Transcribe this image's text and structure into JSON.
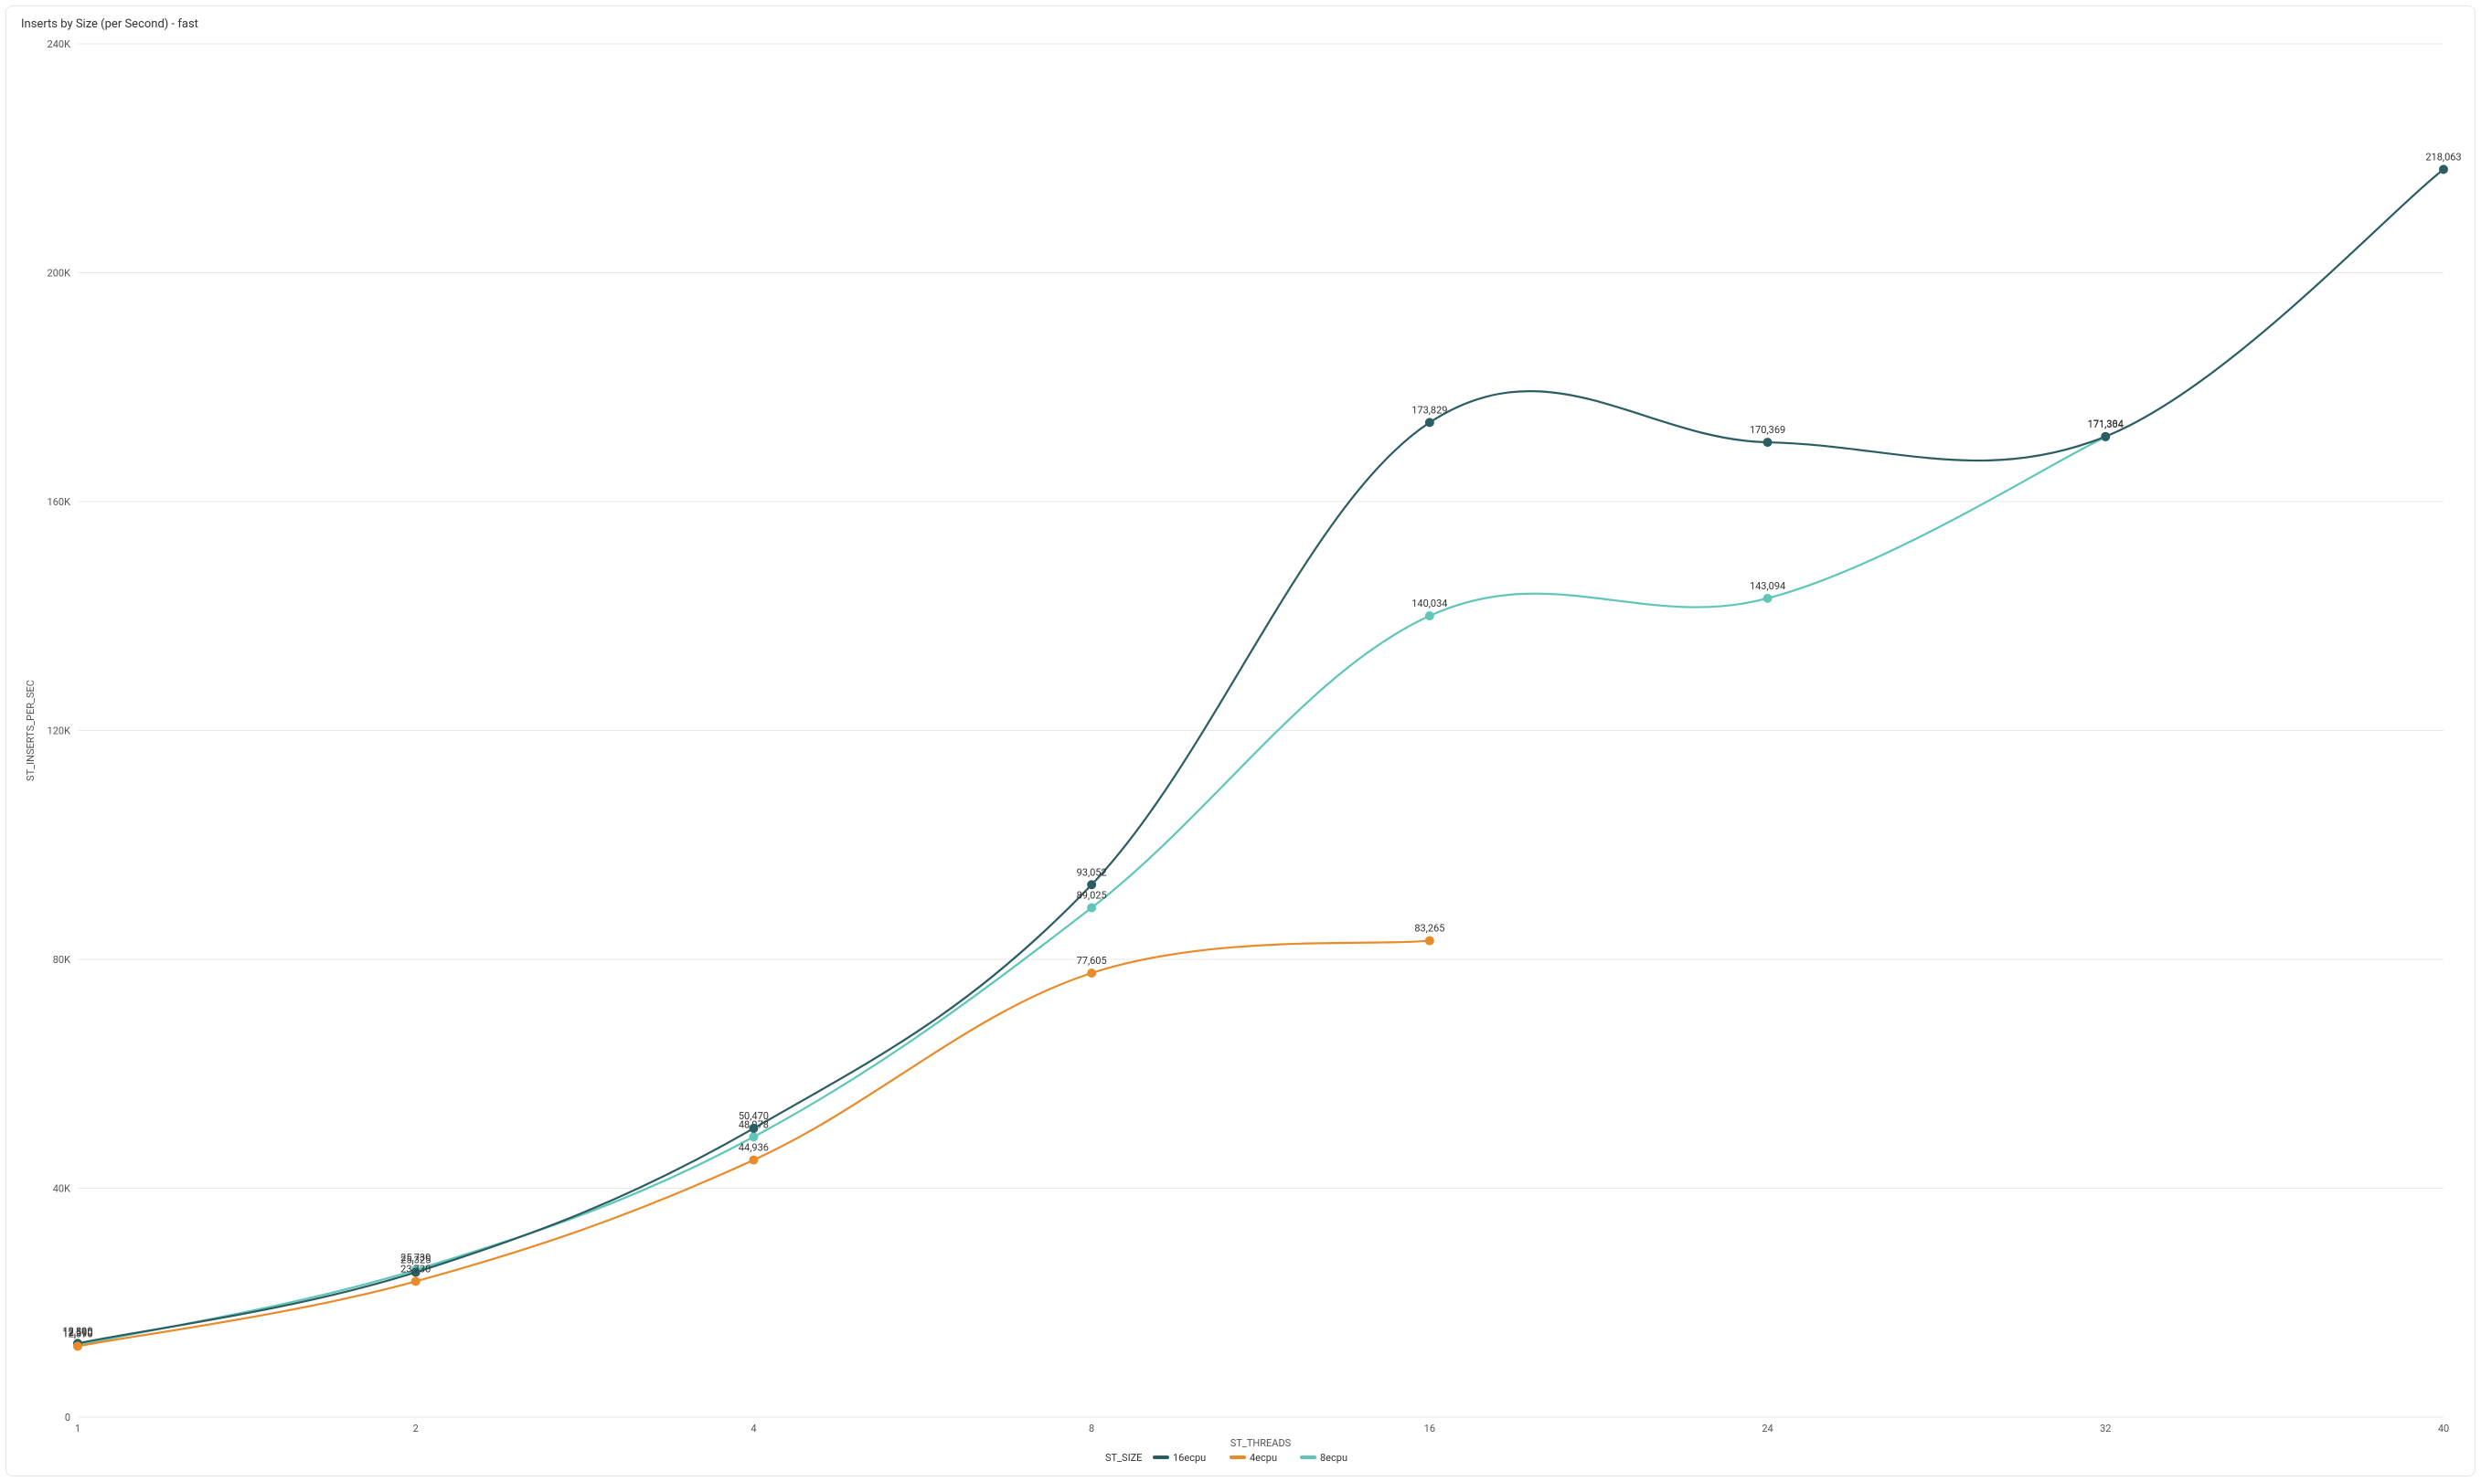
{
  "chart": {
    "type": "line",
    "title": "Inserts by Size (per Second) - fast",
    "title_fontsize": 13,
    "background_color": "#ffffff",
    "border_color": "#e5e5e5",
    "grid_color": "#e9e9e9",
    "axis_text_color": "#555555",
    "point_label_color": "#333333",
    "x_axis": {
      "label": "ST_THREADS",
      "categories": [
        "1",
        "2",
        "4",
        "8",
        "16",
        "24",
        "32",
        "40"
      ],
      "label_fontsize": 11,
      "tick_fontsize": 11
    },
    "y_axis": {
      "label": "ST_INSERTS_PER_SEC",
      "min": 0,
      "max": 240000,
      "tick_step": 40000,
      "tick_labels": [
        "0",
        "40K",
        "80K",
        "120K",
        "160K",
        "200K",
        "240K"
      ],
      "label_fontsize": 11,
      "tick_fontsize": 11
    },
    "legend": {
      "title": "ST_SIZE",
      "position": "bottom",
      "items": [
        {
          "key": "16ecpu",
          "label": "16ecpu",
          "color": "#2b5d62"
        },
        {
          "key": "4ecpu",
          "label": "4ecpu",
          "color": "#e98b2a"
        },
        {
          "key": "8ecpu",
          "label": "8ecpu",
          "color": "#5fc6b8"
        }
      ]
    },
    "marker_radius": 5,
    "line_width": 2.2,
    "series": [
      {
        "key": "16ecpu",
        "label": "16ecpu",
        "color": "#2b5d62",
        "points": [
          {
            "x": "1",
            "y": 12890,
            "label": "12,890"
          },
          {
            "x": "2",
            "y": 25325,
            "label": "25,325"
          },
          {
            "x": "4",
            "y": 50470,
            "label": "50,470"
          },
          {
            "x": "8",
            "y": 93052,
            "label": "93,052"
          },
          {
            "x": "16",
            "y": 173829,
            "label": "173,829"
          },
          {
            "x": "24",
            "y": 170369,
            "label": "170,369"
          },
          {
            "x": "32",
            "y": 171384,
            "label": "171,384"
          },
          {
            "x": "40",
            "y": 218063,
            "label": "218,063"
          }
        ]
      },
      {
        "key": "8ecpu",
        "label": "8ecpu",
        "color": "#5fc6b8",
        "points": [
          {
            "x": "1",
            "y": 12590,
            "label": "12,590"
          },
          {
            "x": "2",
            "y": 25730,
            "label": "25,730"
          },
          {
            "x": "4",
            "y": 48978,
            "label": "48,978"
          },
          {
            "x": "8",
            "y": 89025,
            "label": "89,025"
          },
          {
            "x": "16",
            "y": 140034,
            "label": "140,034"
          },
          {
            "x": "24",
            "y": 143094,
            "label": "143,094"
          },
          {
            "x": "32",
            "y": 171304,
            "label": "171,304"
          }
        ]
      },
      {
        "key": "4ecpu",
        "label": "4ecpu",
        "color": "#e98b2a",
        "points": [
          {
            "x": "1",
            "y": 12390,
            "label": "12,390"
          },
          {
            "x": "2",
            "y": 23730,
            "label": "23,730"
          },
          {
            "x": "4",
            "y": 44936,
            "label": "44,936"
          },
          {
            "x": "8",
            "y": 77605,
            "label": "77,605"
          },
          {
            "x": "16",
            "y": 83265,
            "label": "83,265"
          }
        ]
      }
    ]
  }
}
